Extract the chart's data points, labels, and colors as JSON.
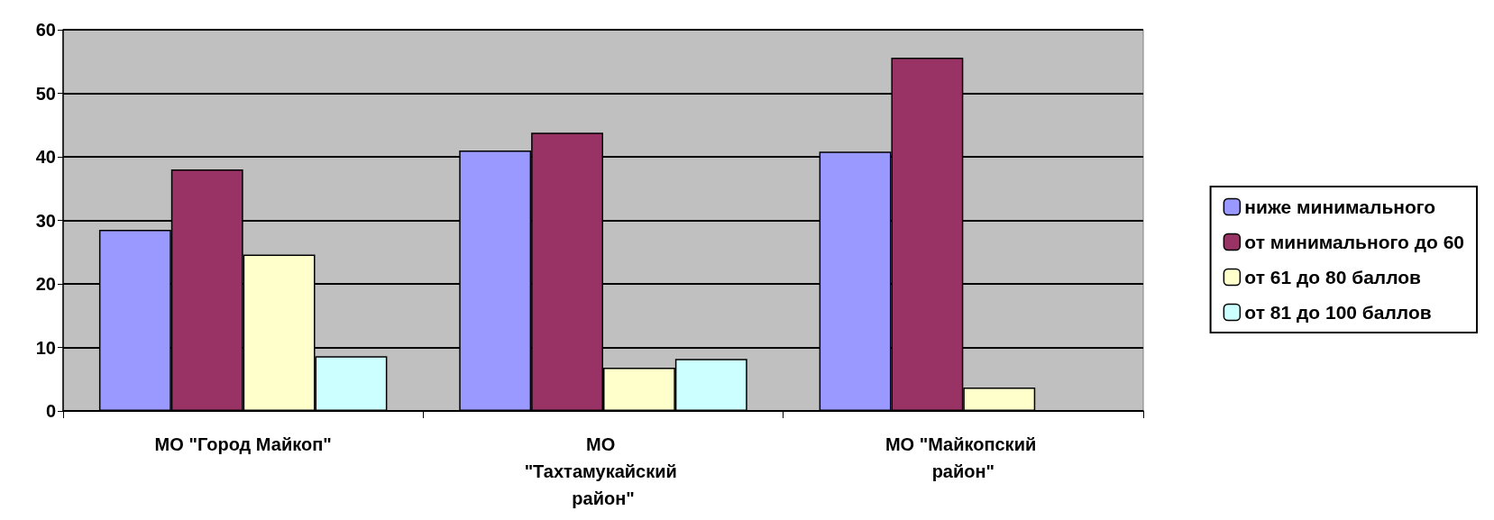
{
  "chart_data": {
    "type": "bar",
    "categories": [
      "МО \"Город Майкоп\"",
      "МО \"Тахтамукайский район\"",
      "МО \"Майкопский район\""
    ],
    "series": [
      {
        "name": "ниже минимального",
        "color": "#9999ff",
        "values": [
          28.5,
          41.0,
          40.8
        ]
      },
      {
        "name": "от минимального до 60",
        "color": "#993366",
        "values": [
          38.0,
          43.8,
          55.6
        ]
      },
      {
        "name": "от 61 до 80 баллов",
        "color": "#ffffcc",
        "values": [
          24.6,
          6.8,
          3.7
        ]
      },
      {
        "name": "от 81 до 100 баллов",
        "color": "#ccffff",
        "values": [
          8.6,
          8.2,
          null
        ]
      }
    ],
    "ylim": [
      0,
      60
    ],
    "yticks": [
      0,
      10,
      20,
      30,
      40,
      50,
      60
    ],
    "grid": "y",
    "legend": "right"
  }
}
